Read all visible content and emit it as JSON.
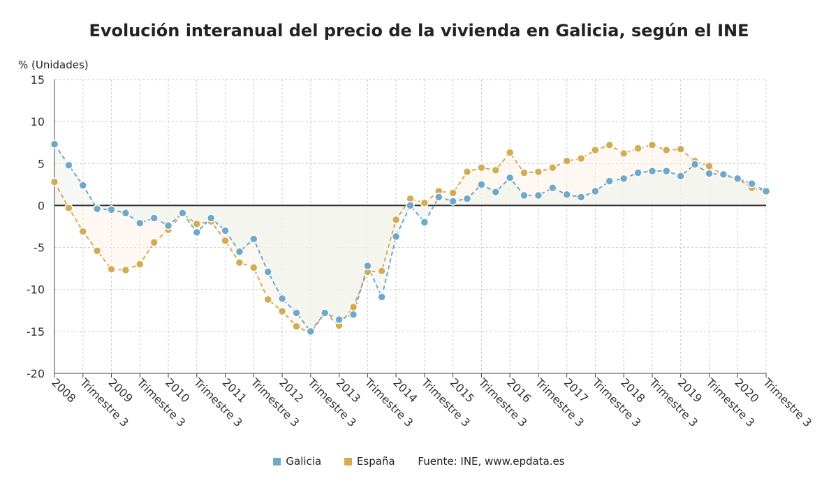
{
  "chart_data": {
    "type": "line",
    "title": "Evolución interanual del precio de la vivienda en Galicia, según el INE",
    "ylabel": "% (Unidades)",
    "source": "Fuente: INE, www.epdata.es",
    "ylim": [
      -20,
      15
    ],
    "yticks": [
      15,
      10,
      5,
      0,
      -5,
      -10,
      -15,
      -20
    ],
    "grid": true,
    "legend_position": "bottom",
    "x_tick_labels": [
      "2008",
      "Trimestre 3",
      "2009",
      "Trimestre 3",
      "2010",
      "Trimestre 3",
      "2011",
      "Trimestre 3",
      "2012",
      "Trimestre 3",
      "2013",
      "Trimestre 3",
      "2014",
      "Trimestre 3",
      "2015",
      "Trimestre 3",
      "2016",
      "Trimestre 3",
      "2017",
      "Trimestre 3",
      "2018",
      "Trimestre 3",
      "2019",
      "Trimestre 3",
      "2020",
      "Trimestre 3"
    ],
    "series": [
      {
        "name": "Galicia",
        "color": "#6fa8c8",
        "values": [
          7.3,
          4.8,
          2.4,
          -0.4,
          -0.5,
          -0.9,
          -2.1,
          -1.5,
          -2.4,
          -0.9,
          -3.2,
          -1.5,
          -3.0,
          -5.5,
          -4.0,
          -7.9,
          -11.1,
          -12.8,
          -15.0,
          -12.8,
          -13.6,
          -13.0,
          -7.2,
          -10.9,
          -3.7,
          0.0,
          -2.0,
          1.0,
          0.5,
          0.8,
          2.5,
          1.6,
          3.3,
          1.2,
          1.2,
          2.1,
          1.3,
          1.0,
          1.7,
          2.9,
          3.2,
          3.9,
          4.1,
          4.1,
          3.5,
          4.9,
          3.8,
          3.7,
          3.2,
          2.6,
          1.7
        ]
      },
      {
        "name": "España",
        "color": "#d4ab55",
        "values": [
          2.8,
          -0.3,
          -3.1,
          -5.4,
          -7.6,
          -7.7,
          -7.0,
          -4.4,
          -2.9,
          -1.0,
          -2.2,
          -1.9,
          -4.2,
          -6.8,
          -7.4,
          -11.2,
          -12.6,
          -14.4,
          -15.2,
          -12.8,
          -14.3,
          -12.1,
          -7.9,
          -7.8,
          -1.7,
          0.8,
          0.3,
          1.7,
          1.5,
          4.0,
          4.5,
          4.2,
          6.3,
          3.9,
          4.0,
          4.5,
          5.3,
          5.6,
          6.6,
          7.2,
          6.2,
          6.8,
          7.2,
          6.6,
          6.7,
          5.3,
          4.7,
          3.6,
          3.2,
          2.1,
          1.7
        ]
      }
    ]
  },
  "colors": {
    "galicia": "#6fa8c8",
    "espana": "#d4ab55",
    "zero_line": "#333333",
    "grid": "#c9c9c9"
  }
}
